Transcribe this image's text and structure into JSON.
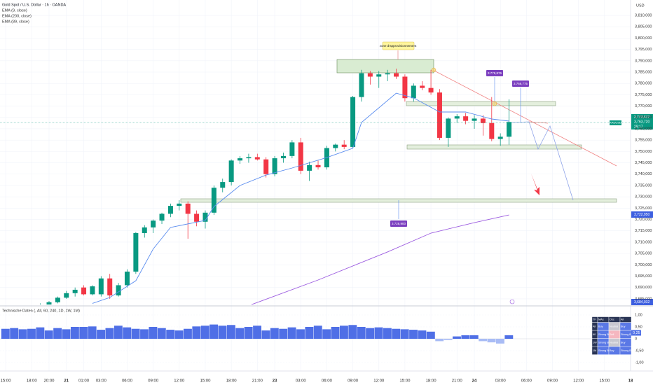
{
  "chart_data": {
    "type": "candlestick",
    "title": "Gold Spot / U.S. Dollar · 1h · OANDA",
    "legend": [
      "EMA (9, close)",
      "EMA (200, close)",
      "EMA (89, close)"
    ],
    "currency": "USD",
    "up_color": "#089981",
    "down_color": "#f23645",
    "ylim": [
      3682.5,
      3816.8
    ],
    "yticks": [
      {
        "value": 3685,
        "label": "3,685,000"
      },
      {
        "value": 3690,
        "label": "3,690,000"
      },
      {
        "value": 3695,
        "label": "3,695,000"
      },
      {
        "value": 3700,
        "label": "3,700,000"
      },
      {
        "value": 3705,
        "label": "3,705,000"
      },
      {
        "value": 3710,
        "label": "3,710,000"
      },
      {
        "value": 3715,
        "label": "3,715,000"
      },
      {
        "value": 3720,
        "label": "3,720,000"
      },
      {
        "value": 3725,
        "label": "3,725,000"
      },
      {
        "value": 3730,
        "label": "3,730,000"
      },
      {
        "value": 3735,
        "label": "3,735,000"
      },
      {
        "value": 3740,
        "label": "3,740,000"
      },
      {
        "value": 3745,
        "label": "3,745,000"
      },
      {
        "value": 3750,
        "label": "3,750,000"
      },
      {
        "value": 3755,
        "label": "3,755,000"
      },
      {
        "value": 3760,
        "label": "3,760,000"
      },
      {
        "value": 3765,
        "label": "3,765,000"
      },
      {
        "value": 3770,
        "label": "3,770,000"
      },
      {
        "value": 3775,
        "label": "3,775,000"
      },
      {
        "value": 3780,
        "label": "3,780,000"
      },
      {
        "value": 3785,
        "label": "3,785,000"
      },
      {
        "value": 3790,
        "label": "3,790,000"
      },
      {
        "value": 3795,
        "label": "3,795,000"
      },
      {
        "value": 3800,
        "label": "3,800,000"
      },
      {
        "value": 3805,
        "label": "3,805,000"
      },
      {
        "value": 3810,
        "label": "3,810,000"
      }
    ],
    "xlim": [
      -0.65,
      72
    ],
    "xticks": [
      {
        "value": 0,
        "label": "15:00"
      },
      {
        "value": 3,
        "label": "18:00"
      },
      {
        "value": 5,
        "label": "20:00"
      },
      {
        "value": 7,
        "label": "21"
      },
      {
        "value": 9,
        "label": "01:00"
      },
      {
        "value": 11,
        "label": "03:00"
      },
      {
        "value": 14,
        "label": "06:00"
      },
      {
        "value": 17,
        "label": "09:00"
      },
      {
        "value": 20,
        "label": "12:00"
      },
      {
        "value": 23,
        "label": "15:00"
      },
      {
        "value": 26,
        "label": "18:00"
      },
      {
        "value": 29,
        "label": "21:00"
      },
      {
        "value": 31,
        "label": "23"
      },
      {
        "value": 34,
        "label": "03:00"
      },
      {
        "value": 37,
        "label": "06:00"
      },
      {
        "value": 40,
        "label": "09:00"
      },
      {
        "value": 43,
        "label": "12:00"
      },
      {
        "value": 46,
        "label": "15:00"
      },
      {
        "value": 49,
        "label": "18:00"
      },
      {
        "value": 52,
        "label": "21:00"
      },
      {
        "value": 54,
        "label": "24"
      },
      {
        "value": 57,
        "label": "03:00"
      },
      {
        "value": 60,
        "label": "06:00"
      },
      {
        "value": 63,
        "label": "09:00"
      },
      {
        "value": 66,
        "label": "12:00"
      },
      {
        "value": 69,
        "label": "15:00"
      },
      {
        "value": 72,
        "label": "18"
      }
    ],
    "candles": {
      "x": [
        4,
        5,
        6,
        7,
        8,
        9,
        10,
        11,
        12,
        13,
        14,
        15,
        16,
        17,
        18,
        19,
        20,
        21,
        22,
        23,
        24,
        25,
        26,
        27,
        28,
        29,
        30,
        31,
        32,
        33,
        34,
        35,
        36,
        37,
        38,
        39,
        40,
        41,
        42,
        43,
        44,
        45,
        46,
        47,
        48,
        49,
        50,
        51,
        52,
        53,
        54,
        55,
        56,
        57,
        58
      ],
      "open": [
        3681,
        3682,
        3683.5,
        3685.5,
        3687.5,
        3690,
        3687,
        3687,
        3694,
        3686.5,
        3691,
        3697,
        3714,
        3716.5,
        3719.5,
        3722.5,
        3726,
        3727,
        3722.5,
        3719,
        3723,
        3734,
        3736.5,
        3746,
        3747,
        3747.5,
        3746.5,
        3740,
        3747,
        3748,
        3754,
        3741.5,
        3744,
        3743,
        3751.5,
        3753,
        3752,
        3774,
        3784.5,
        3783,
        3784,
        3784.5,
        3783,
        3773.5,
        3779,
        3778,
        3776,
        3756,
        3764.5,
        3765.5,
        3763.5,
        3764.5,
        3762.5,
        3755.5,
        3756.5
      ],
      "high": [
        3683,
        3684,
        3686,
        3688.5,
        3690,
        3691,
        3691,
        3695,
        3696,
        3692,
        3698,
        3714.5,
        3717.5,
        3720,
        3723,
        3727,
        3728.5,
        3728,
        3724,
        3724,
        3735,
        3738,
        3746.5,
        3748,
        3749,
        3749,
        3747.5,
        3748,
        3749.5,
        3755,
        3756,
        3745.5,
        3746,
        3752.5,
        3753.5,
        3755,
        3774.5,
        3786,
        3785.5,
        3785.5,
        3786,
        3786.5,
        3784,
        3780,
        3781,
        3786,
        3777.5,
        3765,
        3766.5,
        3767,
        3766,
        3766,
        3774,
        3758,
        3773
      ],
      "low": [
        3680,
        3681,
        3683,
        3685,
        3686,
        3686.5,
        3686.5,
        3686,
        3685,
        3686,
        3690,
        3696,
        3712,
        3714,
        3718,
        3721,
        3724,
        3711.5,
        3717,
        3716,
        3722,
        3732,
        3735,
        3744.5,
        3745,
        3746,
        3738.5,
        3739,
        3745,
        3747,
        3740,
        3737,
        3742,
        3742,
        3750,
        3751,
        3751.5,
        3772,
        3779.5,
        3778,
        3781,
        3782,
        3772,
        3772,
        3777,
        3775,
        3755,
        3752,
        3762.5,
        3762,
        3760,
        3757,
        3754.5,
        3752.5,
        3753
      ],
      "close": [
        3682,
        3683.5,
        3685.5,
        3687.5,
        3689,
        3687,
        3690.5,
        3694,
        3686.5,
        3691,
        3697,
        3714,
        3716.5,
        3719.5,
        3722.5,
        3726,
        3727,
        3722.5,
        3719,
        3723,
        3734,
        3736.5,
        3746,
        3747,
        3747.5,
        3746.5,
        3740,
        3747,
        3748,
        3754,
        3741.5,
        3744,
        3743,
        3751.5,
        3753,
        3752,
        3774,
        3784.5,
        3783,
        3784,
        3784.5,
        3783,
        3773.5,
        3779,
        3778,
        3776,
        3756,
        3764.5,
        3765.5,
        3763.5,
        3764.5,
        3762.5,
        3755.5,
        3756.5,
        3763
      ]
    },
    "lines": [
      {
        "color": "#5b8def",
        "x": [
          10,
          12,
          15,
          17,
          19,
          23,
          24,
          27,
          30,
          33,
          37,
          40,
          41,
          45,
          47,
          50,
          53,
          56,
          58
        ],
        "values": [
          3683,
          3685.6,
          3693,
          3707,
          3716.5,
          3719.6,
          3725.7,
          3735,
          3739.6,
          3742.7,
          3747.3,
          3751.4,
          3762.8,
          3775.7,
          3773.6,
          3767.4,
          3767.4,
          3764.3,
          3763.4
        ]
      },
      {
        "color": "#9c5ce0",
        "x": [
          28,
          36,
          44,
          49,
          54,
          58
        ],
        "values": [
          3682,
          3693.3,
          3705.7,
          3714,
          3718.6,
          3722
        ]
      }
    ],
    "price_tags": {
      "symbol": "XAUUSD",
      "last": "3,763,432",
      "bid": "3,763,720",
      "countdown": "29:17",
      "ema_slow": "3,722,950",
      "ema_long": "3,684,032"
    },
    "annotations": {
      "zone": "zone d'approvisionnement",
      "high1": "3.779,876",
      "high2": "3.766,775",
      "target": "3.728,900"
    },
    "indicator": {
      "title": "Technische Daten (, All, 60, 240, 1D, 1W, 1M)",
      "ylim": [
        -1.118,
        1.294
      ],
      "yticks": [
        {
          "value": 1,
          "label": "1,00"
        },
        {
          "value": 0.5,
          "label": "0,50"
        },
        0,
        {
          "value": -0.5,
          "label": "-0,50"
        },
        {
          "value": -1,
          "label": "-1,00"
        }
      ],
      "current": {
        "value": 0.25,
        "label": "0,25"
      },
      "color": "#4f6fe6",
      "negative_color": "#a9bcf5",
      "values": [
        0.42,
        0.45,
        0.4,
        0.42,
        0.48,
        0.35,
        0.45,
        0.4,
        0.5,
        0.5,
        0.52,
        0.38,
        0.45,
        0.55,
        0.48,
        0.42,
        0.4,
        0.5,
        0.45,
        0.38,
        0.35,
        0.42,
        0.52,
        0.55,
        0.6,
        0.55,
        0.58,
        0.45,
        0.5,
        0.55,
        0.35,
        0.45,
        0.42,
        0.48,
        0.4,
        0.5,
        0.55,
        0.4,
        0.5,
        0.55,
        0.58,
        0.5,
        0.45,
        0.48,
        0.45,
        0.42,
        0.4,
        0.38,
        0.35,
        0.3,
        -0.1,
        -0.05,
        0.1,
        0.15,
        0.15,
        -0.1,
        -0.15,
        -0.2,
        0.15
      ]
    },
    "table": {
      "header": [
        "TF",
        "MAs",
        "Osc",
        "All"
      ],
      "rows": [
        [
          "All",
          "Buy",
          "Neutral",
          "Buy"
        ],
        [
          "60",
          "Strong Buy",
          "Sell",
          "Strong Buy"
        ],
        [
          "1W",
          "Strong Buy",
          "Neutral",
          "Buy"
        ],
        [
          "1M",
          "Strong Buy",
          "Buy",
          "Strong Buy"
        ]
      ]
    }
  }
}
